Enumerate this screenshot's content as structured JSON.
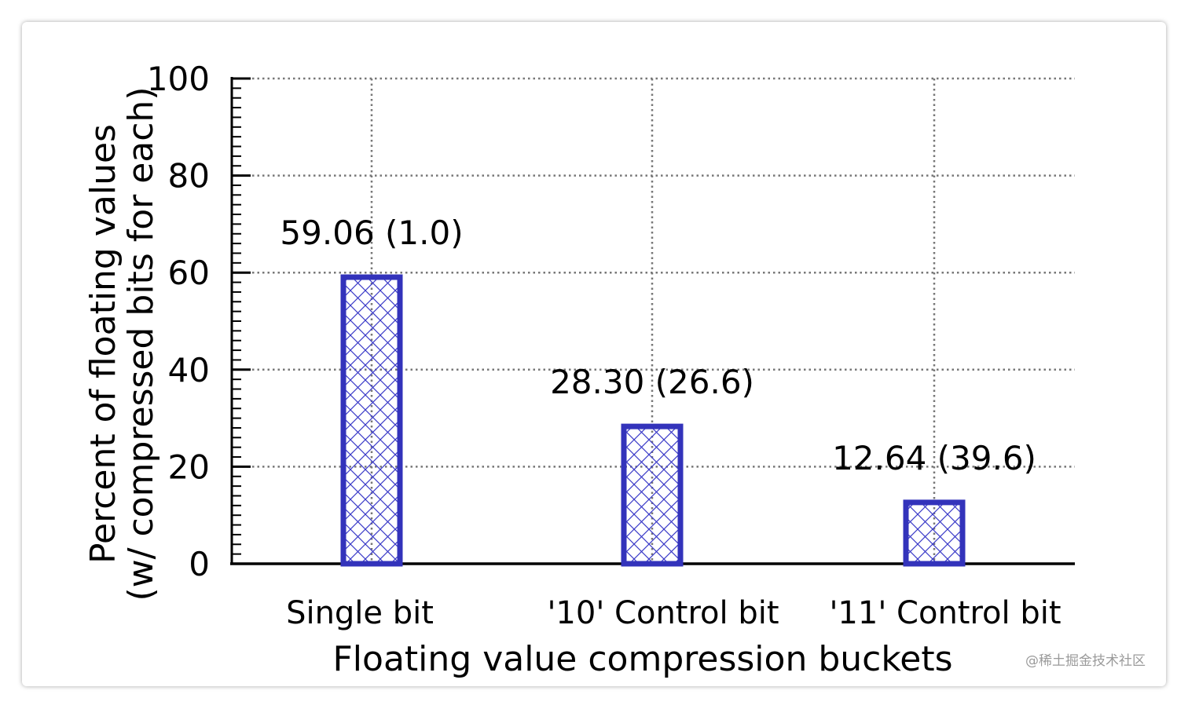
{
  "chart_data": {
    "type": "bar",
    "categories": [
      "Single bit",
      "'10' Control bit",
      "'11' Control bit"
    ],
    "values": [
      59.06,
      28.3,
      12.64
    ],
    "data_labels": [
      "59.06 (1.0)",
      "28.30 (26.6)",
      "12.64 (39.6)"
    ],
    "xlabel": "Floating value compression buckets",
    "ylabel_line1": "Percent of floating values",
    "ylabel_line2": "(w/ compressed bits for each)",
    "ylim": [
      0,
      100
    ],
    "yticks": [
      0,
      20,
      40,
      60,
      80,
      100
    ],
    "grid": true,
    "bar_color": "#3333bb",
    "bar_pattern": "crosshatch"
  },
  "watermark": "@稀土掘金技术社区"
}
